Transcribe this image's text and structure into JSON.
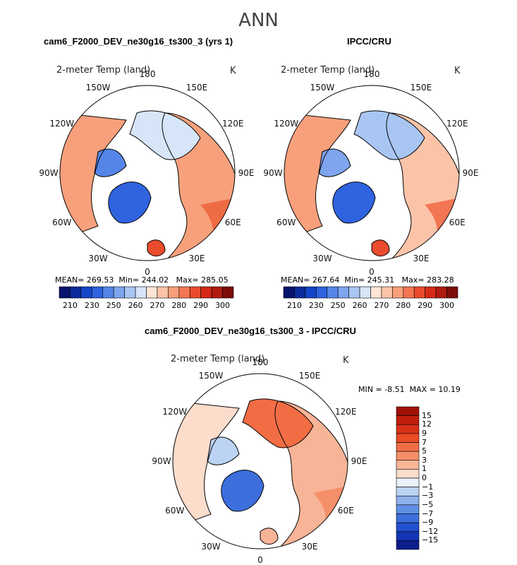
{
  "figure_title": "ANN",
  "panels": [
    {
      "title": "cam6_F2000_DEV_ne30g16_ts300_3 (yrs 1)",
      "variable": "2-meter Temp (land)",
      "units": "K",
      "lon_labels": [
        "180",
        "150E",
        "120E",
        "90E",
        "60E",
        "30E",
        "0",
        "30W",
        "60W",
        "90W",
        "120W",
        "150W"
      ],
      "stats": {
        "mean_label": "MEAN=",
        "mean": "269.53",
        "min_label": "Min=",
        "min": "244.02",
        "max_label": "Max=",
        "max": "285.05"
      },
      "colorbar": {
        "ticks": [
          "210",
          "230",
          "250",
          "260",
          "270",
          "280",
          "290",
          "300"
        ],
        "colors": [
          "#08136e",
          "#0b2a9a",
          "#1445c8",
          "#2f63df",
          "#5585e8",
          "#7ea5ee",
          "#a9c6f3",
          "#d6e6f8",
          "#fde4d6",
          "#fbc4a8",
          "#f8a07c",
          "#f37653",
          "#ea4c2d",
          "#d42a17",
          "#b01a10",
          "#7d0c08"
        ]
      }
    },
    {
      "title": "IPCC/CRU",
      "variable": "2-meter Temp (land)",
      "units": "K",
      "lon_labels": [
        "180",
        "150E",
        "120E",
        "90E",
        "60E",
        "30E",
        "0",
        "30W",
        "60W",
        "90W",
        "120W",
        "150W"
      ],
      "stats": {
        "mean_label": "MEAN=",
        "mean": "267.64",
        "min_label": "Min=",
        "min": "245.31",
        "max_label": "Max=",
        "max": "283.28"
      },
      "colorbar": {
        "ticks": [
          "210",
          "230",
          "250",
          "260",
          "270",
          "280",
          "290",
          "300"
        ],
        "colors": [
          "#08136e",
          "#0b2a9a",
          "#1445c8",
          "#2f63df",
          "#5585e8",
          "#7ea5ee",
          "#a9c6f3",
          "#d6e6f8",
          "#fde4d6",
          "#fbc4a8",
          "#f8a07c",
          "#f37653",
          "#ea4c2d",
          "#d42a17",
          "#b01a10",
          "#7d0c08"
        ]
      }
    },
    {
      "title": "cam6_F2000_DEV_ne30g16_ts300_3 - IPCC/CRU",
      "variable": "2-meter Temp (land)",
      "units": "K",
      "lon_labels": [
        "180",
        "150E",
        "120E",
        "90E",
        "60E",
        "30E",
        "0",
        "30W",
        "60W",
        "90W",
        "120W",
        "150W"
      ],
      "stats": {
        "min_label": "MIN =",
        "min": "-8.51",
        "max_label": "MAX =",
        "max": "10.19"
      },
      "colorbar": {
        "ticks": [
          "15",
          "12",
          "9",
          "7",
          "5",
          "3",
          "1",
          "0",
          "−1",
          "−3",
          "−5",
          "−7",
          "−9",
          "−12",
          "−15"
        ],
        "colors": [
          "#a11106",
          "#c01e0e",
          "#d83218",
          "#ea4a25",
          "#f26d44",
          "#f58f6a",
          "#f8b497",
          "#fcdccb",
          "#e9f1fb",
          "#bcd3f3",
          "#8eb2ec",
          "#6090e4",
          "#3c6fdc",
          "#2150d0",
          "#1334b4",
          "#0b1f8c"
        ]
      }
    }
  ]
}
